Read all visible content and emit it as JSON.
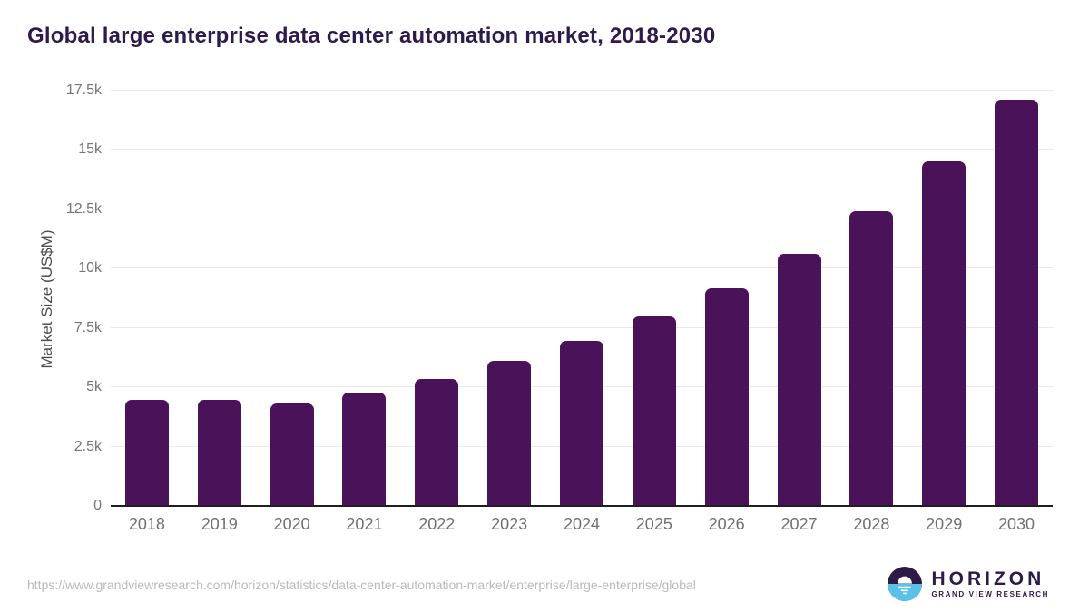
{
  "title": "Global large enterprise data center automation market, 2018-2030",
  "source_url": "https://www.grandviewresearch.com/horizon/statistics/data-center-automation-market/enterprise/large-enterprise/global",
  "branding": {
    "name": "HORIZON",
    "tagline": "GRAND VIEW RESEARCH"
  },
  "colors": {
    "bar": "#4a1259",
    "title_text": "#2e1a4d",
    "tick_text": "#757575",
    "gridline": "#e9e9e9",
    "axis_line": "#1f1f1f",
    "url_text": "#b9b9b9",
    "logo_purple": "#2e1a47",
    "logo_blue": "#5bc2e7"
  },
  "chart_data": {
    "type": "bar",
    "title": "Global large enterprise data center automation market, 2018-2030",
    "xlabel": "",
    "ylabel": "Market Size (US$M)",
    "categories": [
      "2018",
      "2019",
      "2020",
      "2021",
      "2022",
      "2023",
      "2024",
      "2025",
      "2026",
      "2027",
      "2028",
      "2029",
      "2030"
    ],
    "values": [
      4470,
      4480,
      4330,
      4780,
      5360,
      6120,
      6940,
      7990,
      9170,
      10620,
      12430,
      14530,
      17130
    ],
    "ylim": [
      0,
      17500
    ],
    "yticks": [
      {
        "value": 0,
        "label": "0"
      },
      {
        "value": 2500,
        "label": "2.5k"
      },
      {
        "value": 5000,
        "label": "5k"
      },
      {
        "value": 7500,
        "label": "7.5k"
      },
      {
        "value": 10000,
        "label": "10k"
      },
      {
        "value": 12500,
        "label": "12.5k"
      },
      {
        "value": 15000,
        "label": "15k"
      },
      {
        "value": 17500,
        "label": "17.5k"
      }
    ],
    "grid": true,
    "legend": false,
    "bar_color": "#4a1259"
  }
}
